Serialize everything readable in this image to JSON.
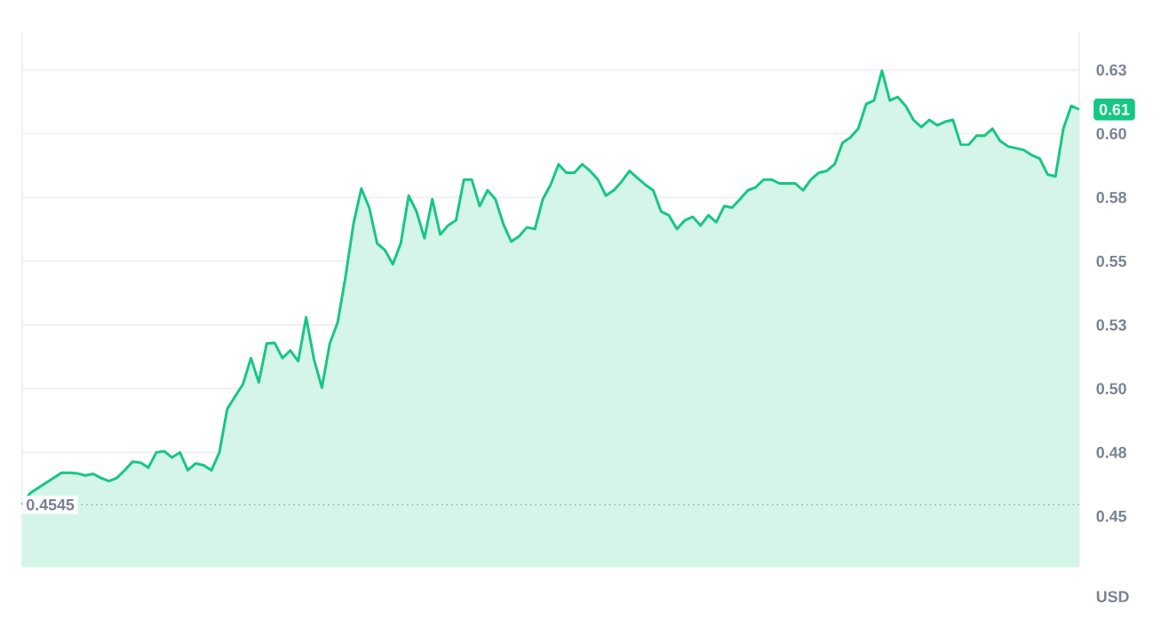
{
  "chart_data": {
    "type": "area",
    "ylabel": "USD",
    "categories": [
      null,
      null,
      null,
      null,
      null,
      null,
      null,
      null,
      null,
      null,
      null,
      null,
      null,
      null,
      null,
      null,
      null,
      null,
      null,
      null,
      null,
      null,
      null,
      null,
      null,
      null,
      null,
      null,
      null,
      null,
      null,
      null,
      null,
      null,
      null,
      null,
      null,
      null,
      null,
      null,
      null,
      null,
      null,
      null,
      null,
      null,
      null,
      null,
      null,
      null,
      null,
      null,
      null,
      null,
      null,
      null,
      null,
      null,
      null,
      null,
      null,
      null,
      null,
      null,
      null,
      null,
      null,
      null,
      null,
      null,
      null,
      null,
      null,
      null,
      null,
      null,
      null,
      null,
      null,
      null,
      null,
      null,
      null,
      null,
      null,
      null,
      null,
      null,
      null,
      null,
      null,
      null,
      null,
      null,
      null,
      null,
      null,
      null,
      null,
      null,
      null,
      null,
      null,
      null,
      null,
      null,
      null,
      null,
      null,
      null,
      null,
      null,
      null,
      null,
      null,
      null,
      null,
      null,
      null,
      null,
      null,
      null,
      null,
      null,
      null,
      null,
      null,
      null,
      null,
      null,
      null,
      null,
      null,
      null,
      null
    ],
    "series": [
      {
        "color": "#16c784",
        "values": [
          0.4545,
          0.459,
          0.461,
          0.463,
          0.465,
          0.467,
          0.467,
          0.4668,
          0.466,
          0.4666,
          0.465,
          0.4638,
          0.465,
          0.468,
          0.4714,
          0.471,
          0.469,
          0.475,
          0.4755,
          0.473,
          0.475,
          0.468,
          0.4707,
          0.47,
          0.468,
          0.475,
          0.492,
          0.497,
          0.5018,
          0.512,
          0.5025,
          0.5177,
          0.518,
          0.512,
          0.515,
          0.5108,
          0.528,
          0.5115,
          0.5004,
          0.5177,
          0.526,
          0.544,
          0.5646,
          0.5785,
          0.571,
          0.557,
          0.5543,
          0.5488,
          0.557,
          0.5757,
          0.5695,
          0.559,
          0.5743,
          0.5605,
          0.564,
          0.566,
          0.582,
          0.582,
          0.5716,
          0.5778,
          0.5743,
          0.5646,
          0.5577,
          0.5598,
          0.5633,
          0.5626,
          0.5743,
          0.58,
          0.588,
          0.5847,
          0.5847,
          0.588,
          0.5854,
          0.582,
          0.5757,
          0.5778,
          0.5812,
          0.5854,
          0.5826,
          0.58,
          0.5778,
          0.5695,
          0.568,
          0.5626,
          0.566,
          0.5674,
          0.564,
          0.568,
          0.5653,
          0.5716,
          0.571,
          0.5743,
          0.5778,
          0.579,
          0.582,
          0.582,
          0.5805,
          0.5805,
          0.5805,
          0.5778,
          0.582,
          0.5847,
          0.5854,
          0.588,
          0.5964,
          0.5985,
          0.602,
          0.6116,
          0.613,
          0.6247,
          0.613,
          0.6144,
          0.6109,
          0.6054,
          0.6026,
          0.6054,
          0.6033,
          0.6047,
          0.6054,
          0.5957,
          0.5957,
          0.5992,
          0.5992,
          0.602,
          0.5971,
          0.595,
          0.5943,
          0.5936,
          0.5916,
          0.5902,
          0.584,
          0.5833,
          0.602,
          0.6109,
          0.6095
        ]
      }
    ],
    "ylim": [
      0.43,
      0.64
    ],
    "yticks": [
      {
        "value": 0.45,
        "label": "0.45"
      },
      {
        "value": 0.475,
        "label": "0.48"
      },
      {
        "value": 0.5,
        "label": "0.50"
      },
      {
        "value": 0.525,
        "label": "0.53"
      },
      {
        "value": 0.55,
        "label": "0.55"
      },
      {
        "value": 0.575,
        "label": "0.58"
      },
      {
        "value": 0.6,
        "label": "0.60"
      },
      {
        "value": 0.625,
        "label": "0.63"
      }
    ],
    "tick_labels": "y",
    "grid": "y",
    "ref_lines": [
      {
        "axis": "y",
        "value": 0.4545,
        "label": "0.4545",
        "color": "#a0a7b4",
        "line_style": "dotted"
      }
    ],
    "annotations": [
      "0.61"
    ]
  }
}
